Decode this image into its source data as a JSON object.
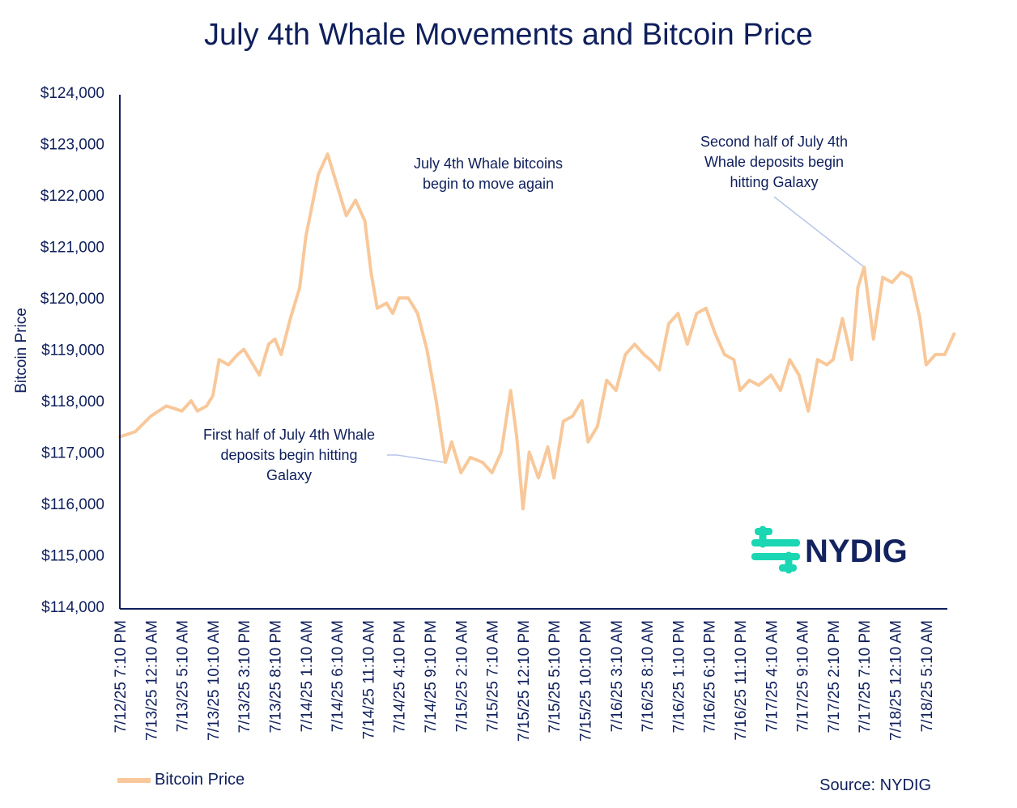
{
  "chart_data": {
    "type": "line",
    "title": "July 4th Whale Movements and Bitcoin Price",
    "ylabel": "Bitcoin Price",
    "xlabel": "",
    "ylim": [
      114000,
      124000
    ],
    "ytick_labels": [
      "$114,000",
      "$115,000",
      "$116,000",
      "$117,000",
      "$118,000",
      "$119,000",
      "$120,000",
      "$121,000",
      "$122,000",
      "$123,000",
      "$124,000"
    ],
    "x_tick_labels": [
      "7/12/25 7:10 PM",
      "7/13/25 12:10 AM",
      "7/13/25 5:10 AM",
      "7/13/25 10:10 AM",
      "7/13/25 3:10 PM",
      "7/13/25 8:10 PM",
      "7/14/25 1:10 AM",
      "7/14/25 6:10 AM",
      "7/14/25 11:10 AM",
      "7/14/25 4:10 PM",
      "7/14/25 9:10 PM",
      "7/15/25 2:10 AM",
      "7/15/25 7:10 AM",
      "7/15/25 12:10 PM",
      "7/15/25 5:10 PM",
      "7/15/25 10:10 PM",
      "7/16/25 3:10 AM",
      "7/16/25 8:10 AM",
      "7/16/25 1:10 PM",
      "7/16/25 6:10 PM",
      "7/16/25 11:10 PM",
      "7/17/25 4:10 AM",
      "7/17/25 9:10 AM",
      "7/17/25 2:10 PM",
      "7/17/25 7:10 PM",
      "7/18/25 12:10 AM",
      "7/18/25 5:10 AM"
    ],
    "grid": false,
    "legend_position": "bottom-left",
    "series": [
      {
        "name": "Bitcoin Price",
        "color": "#f8c89a",
        "x": [
          "7/12/25 7:10 PM",
          "7/12/25 9:40 PM",
          "7/13/25 12:10 AM",
          "7/13/25 2:40 AM",
          "7/13/25 5:10 AM",
          "7/13/25 6:40 AM",
          "7/13/25 7:40 AM",
          "7/13/25 9:10 AM",
          "7/13/25 10:10 AM",
          "7/13/25 11:10 AM",
          "7/13/25 12:40 PM",
          "7/13/25 2:10 PM",
          "7/13/25 3:10 PM",
          "7/13/25 4:10 PM",
          "7/13/25 5:40 PM",
          "7/13/25 7:10 PM",
          "7/13/25 8:10 PM",
          "7/13/25 9:10 PM",
          "7/13/25 10:40 PM",
          "7/14/25 12:10 AM",
          "7/14/25 1:10 AM",
          "7/14/25 2:10 AM",
          "7/14/25 3:10 AM",
          "7/14/25 4:40 AM",
          "7/14/25 6:10 AM",
          "7/14/25 7:40 AM",
          "7/14/25 9:10 AM",
          "7/14/25 10:40 AM",
          "7/14/25 11:40 AM",
          "7/14/25 12:40 PM",
          "7/14/25 2:10 PM",
          "7/14/25 3:10 PM",
          "7/14/25 4:10 PM",
          "7/14/25 5:40 PM",
          "7/14/25 7:10 PM",
          "7/14/25 8:40 PM",
          "7/14/25 10:10 PM",
          "7/14/25 11:40 PM",
          "7/15/25 12:40 AM",
          "7/15/25 2:10 AM",
          "7/15/25 3:40 AM",
          "7/15/25 5:40 AM",
          "7/15/25 7:10 AM",
          "7/15/25 8:40 AM",
          "7/15/25 10:10 AM",
          "7/15/25 11:10 AM",
          "7/15/25 12:10 PM",
          "7/15/25 1:10 PM",
          "7/15/25 2:40 PM",
          "7/15/25 4:10 PM",
          "7/15/25 5:10 PM",
          "7/15/25 6:40 PM",
          "7/15/25 8:10 PM",
          "7/15/25 9:40 PM",
          "7/15/25 10:40 PM",
          "7/16/25 12:10 AM",
          "7/16/25 1:40 AM",
          "7/16/25 3:10 AM",
          "7/16/25 4:40 AM",
          "7/16/25 6:10 AM",
          "7/16/25 7:40 AM",
          "7/16/25 8:40 AM",
          "7/16/25 10:10 AM",
          "7/16/25 11:40 AM",
          "7/16/25 1:10 PM",
          "7/16/25 2:40 PM",
          "7/16/25 4:10 PM",
          "7/16/25 5:40 PM",
          "7/16/25 7:10 PM",
          "7/16/25 8:40 PM",
          "7/16/25 10:10 PM",
          "7/16/25 11:10 PM",
          "7/17/25 12:40 AM",
          "7/17/25 2:10 AM",
          "7/17/25 4:10 AM",
          "7/17/25 5:40 AM",
          "7/17/25 7:10 AM",
          "7/17/25 8:40 AM",
          "7/17/25 10:10 AM",
          "7/17/25 11:40 AM",
          "7/17/25 1:10 PM",
          "7/17/25 2:10 PM",
          "7/17/25 3:40 PM",
          "7/17/25 5:10 PM",
          "7/17/25 6:10 PM",
          "7/17/25 7:10 PM",
          "7/17/25 8:40 PM",
          "7/17/25 10:10 PM",
          "7/17/25 11:40 PM",
          "7/18/25 1:10 AM",
          "7/18/25 2:40 AM",
          "7/18/25 4:10 AM",
          "7/18/25 5:10 AM",
          "7/18/25 6:40 AM",
          "7/18/25 8:10 AM",
          "7/18/25 9:40 AM"
        ],
        "values": [
          117300,
          117400,
          117700,
          117900,
          117800,
          118000,
          117800,
          117900,
          118100,
          118800,
          118700,
          118900,
          119000,
          118800,
          118500,
          119100,
          119200,
          118900,
          119600,
          120200,
          121200,
          121800,
          122400,
          122800,
          122200,
          121600,
          121900,
          121500,
          120500,
          119800,
          119900,
          119700,
          120000,
          120000,
          119700,
          119000,
          118000,
          116800,
          117200,
          116600,
          116900,
          116800,
          116600,
          117000,
          118200,
          117300,
          115900,
          117000,
          116500,
          117100,
          116500,
          117600,
          117700,
          118000,
          117200,
          117500,
          118400,
          118200,
          118900,
          119100,
          118900,
          118800,
          118600,
          119500,
          119700,
          119100,
          119700,
          119800,
          119300,
          118900,
          118800,
          118200,
          118400,
          118300,
          118500,
          118200,
          118800,
          118500,
          117800,
          118800,
          118700,
          118800,
          119600,
          118800,
          120200,
          120600,
          119200,
          120400,
          120300,
          120500,
          120400,
          119600,
          118700,
          118900,
          118900,
          119300
        ]
      }
    ],
    "annotations": [
      {
        "lines": [
          "July 4th Whale bitcoins",
          "begin to move again"
        ],
        "points_to": "7/14/25 11:10 AM"
      },
      {
        "lines": [
          "First half of July 4th Whale",
          "deposits begin hitting",
          "Galaxy"
        ],
        "points_to": "7/14/25 11:40 PM"
      },
      {
        "lines": [
          "Second half of July 4th",
          "Whale deposits begin",
          "hitting Galaxy"
        ],
        "points_to": "7/17/25 7:10 PM"
      }
    ]
  },
  "source": "Source: NYDIG",
  "logo": {
    "text": "NYDIG",
    "accent_color": "#1bd6b3"
  },
  "colors": {
    "text": "#0f1f5c",
    "axis": "#0f1f5c",
    "line": "#f8c89a",
    "annotation_line": "#b8c4ea"
  }
}
